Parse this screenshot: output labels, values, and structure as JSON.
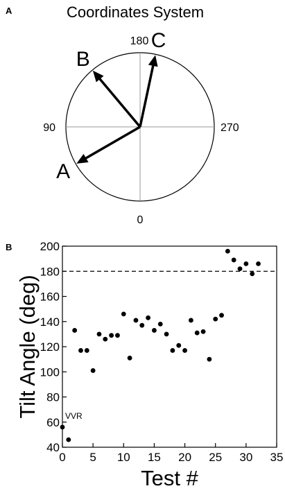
{
  "panel_a": {
    "letter": "A",
    "title": "Coordinates System",
    "angle_labels": {
      "top": "180",
      "left": "90",
      "right": "270",
      "bottom": "0"
    },
    "vectors": [
      {
        "label": "A",
        "angle_deg": 60
      },
      {
        "label": "B",
        "angle_deg": 140
      },
      {
        "label": "C",
        "angle_deg": 192
      }
    ]
  },
  "panel_b": {
    "letter": "B",
    "annotation": "VVR"
  },
  "chart_data": {
    "type": "scatter",
    "title": "",
    "xlabel": "Test #",
    "ylabel": "Tilt Angle (deg)",
    "xlim": [
      0,
      35
    ],
    "ylim": [
      40,
      200
    ],
    "xticks": [
      "0",
      "5",
      "10",
      "15",
      "20",
      "25",
      "30",
      "35"
    ],
    "yticks": [
      "40",
      "60",
      "80",
      "100",
      "120",
      "140",
      "160",
      "180",
      "200"
    ],
    "reference_line": {
      "y": 180,
      "style": "dashed"
    },
    "points": [
      [
        0,
        56
      ],
      [
        1,
        46
      ],
      [
        2,
        133
      ],
      [
        3,
        117
      ],
      [
        4,
        117
      ],
      [
        5,
        101
      ],
      [
        6,
        130
      ],
      [
        7,
        126
      ],
      [
        8,
        129
      ],
      [
        9,
        129
      ],
      [
        10,
        146
      ],
      [
        11,
        111
      ],
      [
        12,
        141
      ],
      [
        13,
        137
      ],
      [
        14,
        143
      ],
      [
        15,
        133
      ],
      [
        16,
        138
      ],
      [
        17,
        130
      ],
      [
        18,
        117
      ],
      [
        19,
        121
      ],
      [
        20,
        117
      ],
      [
        21,
        141
      ],
      [
        22,
        131
      ],
      [
        23,
        132
      ],
      [
        24,
        110
      ],
      [
        25,
        142
      ],
      [
        26,
        145
      ],
      [
        27,
        196
      ],
      [
        28,
        189
      ],
      [
        29,
        182
      ],
      [
        30,
        186
      ],
      [
        31,
        178
      ],
      [
        32,
        186
      ]
    ]
  }
}
